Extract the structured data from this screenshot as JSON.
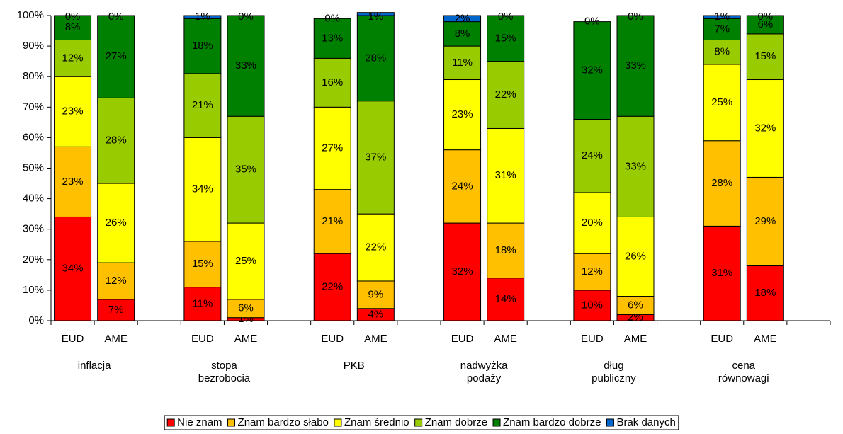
{
  "chart_data": {
    "type": "stacked_bar",
    "categories": [
      "EUD",
      "AME",
      "EUD",
      "AME",
      "EUD",
      "AME",
      "EUD",
      "AME",
      "EUD",
      "AME",
      "EUD",
      "AME"
    ],
    "groups": [
      "inflacja",
      "stopa bezrobocia",
      "PKB",
      "nadwyżka podaży",
      "dług publiczny",
      "cena równowagi"
    ],
    "ylim": [
      0,
      100
    ],
    "yticks": [
      {
        "value": 0,
        "label": "0%"
      },
      {
        "value": 10,
        "label": "10%"
      },
      {
        "value": 20,
        "label": "20%"
      },
      {
        "value": 30,
        "label": "30%"
      },
      {
        "value": 40,
        "label": "40%"
      },
      {
        "value": 50,
        "label": "50%"
      },
      {
        "value": 60,
        "label": "60%"
      },
      {
        "value": 70,
        "label": "70%"
      },
      {
        "value": 80,
        "label": "80%"
      },
      {
        "value": 90,
        "label": "90%"
      },
      {
        "value": 100,
        "label": "100%"
      }
    ],
    "legend": "bottom",
    "series": [
      {
        "name": "Nie znam",
        "color": "#ff0000",
        "values": [
          34,
          7,
          11,
          1,
          22,
          4,
          32,
          14,
          10,
          2,
          31,
          18
        ],
        "value_labels": [
          "34%",
          "7%",
          "11%",
          "1%",
          "22%",
          "4%",
          "32%",
          "14%",
          "10%",
          "2%",
          "31%",
          "18%"
        ]
      },
      {
        "name": "Znam bardzo słabo",
        "color": "#ffc000",
        "values": [
          23,
          12,
          15,
          6,
          21,
          9,
          24,
          18,
          12,
          6,
          28,
          29
        ],
        "value_labels": [
          "23%",
          "12%",
          "15%",
          "6%",
          "21%",
          "9%",
          "24%",
          "18%",
          "12%",
          "6%",
          "28%",
          "29%"
        ]
      },
      {
        "name": "Znam średnio",
        "color": "#ffff00",
        "values": [
          23,
          26,
          34,
          25,
          27,
          22,
          23,
          31,
          20,
          26,
          25,
          32
        ],
        "value_labels": [
          "23%",
          "26%",
          "34%",
          "25%",
          "27%",
          "22%",
          "23%",
          "31%",
          "20%",
          "26%",
          "25%",
          "32%"
        ]
      },
      {
        "name": "Znam dobrze",
        "color": "#99cc00",
        "values": [
          12,
          28,
          21,
          35,
          16,
          37,
          11,
          22,
          24,
          33,
          8,
          15
        ],
        "value_labels": [
          "12%",
          "28%",
          "21%",
          "35%",
          "16%",
          "37%",
          "11%",
          "22%",
          "24%",
          "33%",
          "8%",
          "15%"
        ]
      },
      {
        "name": "Znam bardzo dobrze",
        "color": "#008000",
        "values": [
          8,
          27,
          18,
          33,
          13,
          28,
          8,
          15,
          32,
          33,
          7,
          6
        ],
        "value_labels": [
          "8%",
          "27%",
          "18%",
          "33%",
          "13%",
          "28%",
          "8%",
          "15%",
          "32%",
          "33%",
          "7%",
          "6%"
        ]
      },
      {
        "name": "Brak danych",
        "color": "#0066cc",
        "values": [
          0,
          0,
          1,
          0,
          0,
          1,
          2,
          0,
          0,
          0,
          1,
          0
        ],
        "value_labels": [
          "0%",
          "0%",
          "1%",
          "0%",
          "0%",
          "1%",
          "2%",
          "0%",
          "0%",
          "0%",
          "1%",
          "0%"
        ]
      }
    ]
  }
}
